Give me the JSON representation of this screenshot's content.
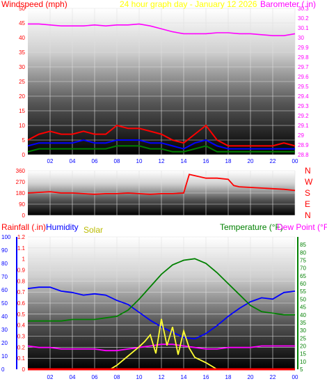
{
  "chart_data": [
    {
      "type": "line",
      "title": "24 hour graph day - January 12 2026",
      "left_label": "Windspeed (mph)",
      "right_label": "Barometer (.in)",
      "x_ticks": [
        "02",
        "04",
        "06",
        "08",
        "10",
        "12",
        "14",
        "16",
        "18",
        "20",
        "22",
        "00"
      ],
      "x_hours": [
        2,
        4,
        6,
        8,
        10,
        12,
        14,
        16,
        18,
        20,
        22,
        24
      ],
      "ylim_left": [
        0,
        50
      ],
      "ylim_right": [
        28.8,
        30.3
      ],
      "left_ticks": [
        0,
        5,
        10,
        15,
        20,
        25,
        30,
        35,
        40,
        45,
        50
      ],
      "right_ticks": [
        "28.8",
        "28.9",
        "29",
        "29.1",
        "29.2",
        "29.3",
        "29.4",
        "29.5",
        "29.6",
        "29.7",
        "29.8",
        "29.9",
        "30",
        "30.1",
        "30.2",
        "30.3"
      ],
      "colors": {
        "left_label": "#ff0000",
        "title": "#ffff00",
        "right_label": "#ff00ff"
      },
      "series": [
        {
          "name": "Barometer",
          "color": "#ff00ff",
          "axis": "right",
          "x": [
            0,
            1,
            2,
            3,
            4,
            5,
            6,
            7,
            8,
            9,
            10,
            11,
            12,
            13,
            14,
            15,
            16,
            17,
            18,
            19,
            20,
            21,
            22,
            23,
            24
          ],
          "values": [
            30.14,
            30.14,
            30.13,
            30.12,
            30.12,
            30.12,
            30.13,
            30.12,
            30.13,
            30.13,
            30.14,
            30.12,
            30.09,
            30.06,
            30.04,
            30.04,
            30.04,
            30.05,
            30.05,
            30.04,
            30.04,
            30.03,
            30.02,
            30.02,
            30.04
          ]
        },
        {
          "name": "Wind gust",
          "color": "#ff0000",
          "axis": "left",
          "x": [
            0,
            1,
            2,
            3,
            4,
            5,
            6,
            7,
            8,
            9,
            10,
            11,
            12,
            13,
            14,
            15,
            16,
            17,
            18,
            19,
            20,
            21,
            22,
            23,
            24
          ],
          "values": [
            5,
            7,
            8,
            7,
            7,
            8,
            7,
            7,
            10,
            9,
            9,
            8,
            7,
            5,
            4,
            7,
            10,
            5,
            3,
            3,
            3,
            3,
            3,
            4,
            3
          ]
        },
        {
          "name": "Wind average",
          "color": "#0000ff",
          "axis": "left",
          "x": [
            0,
            1,
            2,
            3,
            4,
            5,
            6,
            7,
            8,
            9,
            10,
            11,
            12,
            13,
            14,
            15,
            16,
            17,
            18,
            19,
            20,
            21,
            22,
            23,
            24
          ],
          "values": [
            3,
            4,
            4,
            4,
            4,
            5,
            4,
            4,
            5,
            5,
            5,
            4,
            4,
            3,
            2,
            4,
            5,
            3,
            2,
            2,
            2,
            2,
            2,
            2,
            2
          ]
        },
        {
          "name": "Wind lull",
          "color": "#008000",
          "axis": "left",
          "x": [
            0,
            1,
            2,
            3,
            4,
            5,
            6,
            7,
            8,
            9,
            10,
            11,
            12,
            13,
            14,
            15,
            16,
            17,
            18,
            19,
            20,
            21,
            22,
            23,
            24
          ],
          "values": [
            1,
            2,
            2,
            2,
            2,
            2,
            2,
            2,
            3,
            3,
            3,
            2,
            2,
            1,
            1,
            2,
            3,
            1,
            1,
            1,
            1,
            1,
            1,
            1,
            1
          ]
        }
      ]
    },
    {
      "type": "line",
      "x_ticks": [
        "02",
        "04",
        "06",
        "08",
        "10",
        "12",
        "14",
        "16",
        "18",
        "20",
        "22",
        "00"
      ],
      "x_hours": [
        2,
        4,
        6,
        8,
        10,
        12,
        14,
        16,
        18,
        20,
        22,
        24
      ],
      "ylim": [
        0,
        360
      ],
      "left_ticks": [
        0,
        90,
        180,
        270,
        360
      ],
      "compass": [
        "N",
        "W",
        "S",
        "E",
        "N"
      ],
      "colors": {
        "compass": "#ff0000"
      },
      "series": [
        {
          "name": "Wind direction",
          "color": "#ff0000",
          "x": [
            0,
            1,
            2,
            3,
            4,
            5,
            6,
            7,
            8,
            9,
            10,
            11,
            12,
            13,
            14,
            14.5,
            15,
            16,
            17,
            18,
            18.5,
            19,
            20,
            21,
            22,
            23,
            24
          ],
          "values": [
            180,
            185,
            190,
            180,
            180,
            175,
            170,
            175,
            175,
            180,
            175,
            170,
            175,
            175,
            180,
            330,
            320,
            300,
            300,
            290,
            240,
            230,
            225,
            220,
            215,
            210,
            200
          ]
        }
      ]
    },
    {
      "type": "line",
      "labels": {
        "rainfall": "Rainfall (.in)",
        "humidity": "Humidity",
        "solar": "Solar",
        "temperature": "Temperature (°F)",
        "dewpoint": "Dew Point (°F)"
      },
      "colors": {
        "rainfall": "#ff0000",
        "humidity": "#0000ff",
        "solar": "#bbbb00",
        "temperature": "#008000",
        "dewpoint": "#ff00ff"
      },
      "x_ticks": [
        "02",
        "04",
        "06",
        "08",
        "10",
        "12",
        "14",
        "16",
        "18",
        "20",
        "22",
        "00"
      ],
      "x_hours": [
        2,
        4,
        6,
        8,
        10,
        12,
        14,
        16,
        18,
        20,
        22,
        24
      ],
      "ylim_humidity": [
        0,
        100
      ],
      "ylim_rain": [
        0,
        1.2
      ],
      "ylim_temp": [
        5,
        90
      ],
      "humidity_ticks": [
        0,
        10,
        20,
        30,
        40,
        50,
        60,
        70,
        80,
        90,
        100
      ],
      "rain_ticks": [
        "0",
        "0.1",
        "0.2",
        "0.3",
        "0.4",
        "0.5",
        "0.6",
        "0.7",
        "0.8",
        "0.9",
        "1",
        "1.1",
        "1.2"
      ],
      "temp_ticks": [
        5,
        10,
        15,
        20,
        25,
        30,
        35,
        40,
        45,
        50,
        55,
        60,
        65,
        70,
        75,
        80,
        85
      ],
      "series": [
        {
          "name": "Humidity",
          "color": "#0000ff",
          "axis": "humidity",
          "x": [
            0,
            1,
            2,
            3,
            4,
            5,
            6,
            7,
            8,
            9,
            10,
            11,
            12,
            13,
            14,
            15,
            16,
            17,
            18,
            19,
            20,
            21,
            22,
            23,
            24
          ],
          "values": [
            61,
            62,
            62,
            59,
            58,
            56,
            57,
            56,
            52,
            49,
            43,
            37,
            32,
            28,
            24,
            23,
            27,
            33,
            40,
            46,
            51,
            54,
            53,
            58,
            59
          ]
        },
        {
          "name": "Temperature",
          "color": "#008000",
          "axis": "temp",
          "x": [
            0,
            1,
            2,
            3,
            4,
            5,
            6,
            7,
            8,
            9,
            10,
            11,
            12,
            13,
            14,
            15,
            16,
            17,
            18,
            19,
            20,
            21,
            22,
            23,
            24
          ],
          "values": [
            36,
            36,
            36,
            36,
            37,
            37,
            37,
            38,
            39,
            43,
            50,
            58,
            66,
            72,
            75,
            76,
            73,
            67,
            60,
            53,
            46,
            42,
            41,
            40,
            40
          ]
        },
        {
          "name": "Dew Point",
          "color": "#ff00ff",
          "axis": "temp",
          "x": [
            0,
            1,
            2,
            3,
            4,
            5,
            6,
            7,
            8,
            9,
            10,
            11,
            12,
            13,
            14,
            15,
            16,
            17,
            18,
            19,
            20,
            21,
            22,
            23,
            24
          ],
          "values": [
            20,
            19,
            19,
            18,
            18,
            18,
            18,
            17,
            17,
            18,
            19,
            20,
            21,
            21,
            20,
            19,
            18,
            18,
            19,
            19,
            19,
            20,
            20,
            20,
            20
          ]
        },
        {
          "name": "Solar",
          "color": "#ffff33",
          "axis": "humidity",
          "x": [
            0,
            7.4,
            8,
            9,
            10,
            10.5,
            11,
            11.5,
            12,
            12.5,
            13,
            13.5,
            14,
            14.5,
            15,
            16,
            16.8,
            17,
            24
          ],
          "values": [
            0,
            0,
            3,
            10,
            17,
            21,
            26,
            12,
            38,
            18,
            32,
            11,
            29,
            16,
            9,
            5,
            1,
            0,
            0
          ]
        },
        {
          "name": "Rainfall",
          "color": "#ff0000",
          "axis": "rain",
          "x": [
            0,
            24
          ],
          "values": [
            0,
            0
          ]
        }
      ]
    }
  ]
}
